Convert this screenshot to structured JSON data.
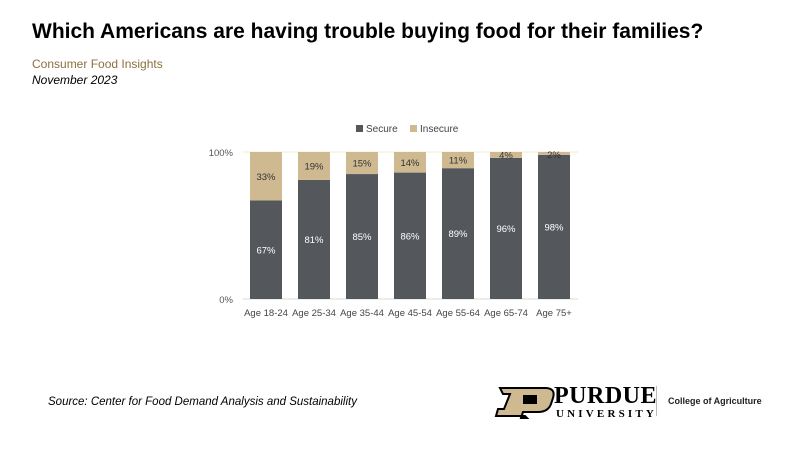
{
  "title": "Which Americans are having trouble buying food for their families?",
  "subtitle": "Consumer Food Insights",
  "date": "November 2023",
  "source": "Source:  Center for Food Demand Analysis and Sustainability",
  "logo": {
    "name": "PURDUE",
    "sub": "UNIVERSITY",
    "college": "College of Agriculture"
  },
  "chart_data": {
    "type": "bar",
    "stacked": true,
    "categories": [
      "Age 18-24",
      "Age 25-34",
      "Age 35-44",
      "Age 45-54",
      "Age 55-64",
      "Age 65-74",
      "Age 75+"
    ],
    "series": [
      {
        "name": "Secure",
        "color": "#54585d",
        "values": [
          67,
          81,
          85,
          86,
          89,
          96,
          98
        ],
        "labels": [
          "67%",
          "81%",
          "85%",
          "86%",
          "89%",
          "96%",
          "98%"
        ]
      },
      {
        "name": "Insecure",
        "color": "#cfb991",
        "values": [
          33,
          19,
          15,
          14,
          11,
          4,
          2
        ],
        "labels": [
          "33%",
          "19%",
          "15%",
          "14%",
          "11%",
          "4%",
          "2%"
        ]
      }
    ],
    "ylim": [
      0,
      100
    ],
    "yticks": [
      "0%",
      "100%"
    ],
    "legend": "top"
  }
}
